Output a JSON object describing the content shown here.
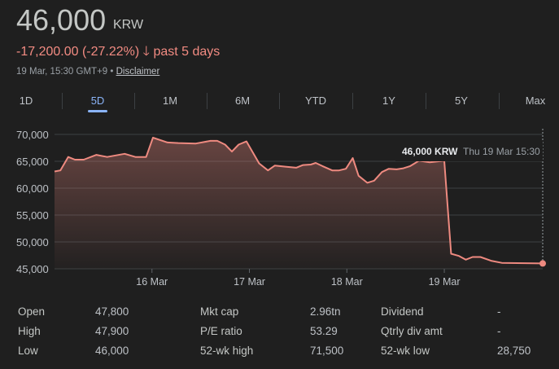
{
  "header": {
    "price": "46,000",
    "currency": "KRW",
    "change": "-17,200.00 (-27.22%)",
    "change_period": "past 5 days",
    "timestamp": "19 Mar, 15:30 GMT+9 •",
    "disclaimer": "Disclaimer"
  },
  "tabs": [
    {
      "label": "1D"
    },
    {
      "label": "5D",
      "active": true
    },
    {
      "label": "1M"
    },
    {
      "label": "6M"
    },
    {
      "label": "YTD"
    },
    {
      "label": "1Y"
    },
    {
      "label": "5Y"
    },
    {
      "label": "Max"
    }
  ],
  "tooltip": {
    "value": "46,000 KRW",
    "time": "Thu 19 Mar 15:30"
  },
  "colors": {
    "line": "#ee8a80",
    "negative": "#f28b82",
    "accent": "#8ab4f8"
  },
  "chart_data": {
    "type": "area",
    "title": "",
    "xlabel": "",
    "ylabel": "",
    "ylim": [
      45000,
      70000
    ],
    "xlim": [
      0,
      5.01
    ],
    "yticks": [
      {
        "v": 70000,
        "label": "70,000"
      },
      {
        "v": 65000,
        "label": "65,000"
      },
      {
        "v": 60000,
        "label": "60,000"
      },
      {
        "v": 55000,
        "label": "55,000"
      },
      {
        "v": 50000,
        "label": "50,000"
      },
      {
        "v": 45000,
        "label": "45,000"
      }
    ],
    "xticks": [
      {
        "v": 1,
        "label": "16 Mar"
      },
      {
        "v": 2,
        "label": "17 Mar"
      },
      {
        "v": 3,
        "label": "18 Mar"
      },
      {
        "v": 4,
        "label": "19 Mar"
      }
    ],
    "x": [
      0,
      0.06,
      0.14,
      0.21,
      0.3,
      0.43,
      0.54,
      0.72,
      0.83,
      0.94,
      1.01,
      1.16,
      1.27,
      1.45,
      1.6,
      1.67,
      1.75,
      1.82,
      1.89,
      1.97,
      2.1,
      2.19,
      2.26,
      2.37,
      2.48,
      2.55,
      2.63,
      2.68,
      2.75,
      2.85,
      2.92,
      2.99,
      3.06,
      3.12,
      3.21,
      3.28,
      3.36,
      3.43,
      3.51,
      3.58,
      3.65,
      3.74,
      3.85,
      4.0,
      4.07,
      4.15,
      4.22,
      4.29,
      4.37,
      4.48,
      4.59,
      5.01
    ],
    "y": [
      63100,
      63300,
      65800,
      65300,
      65300,
      66200,
      65800,
      66400,
      65800,
      65800,
      69400,
      68500,
      68400,
      68300,
      68800,
      68800,
      68100,
      66800,
      68100,
      68700,
      64600,
      63300,
      64200,
      64000,
      63800,
      64300,
      64400,
      64700,
      64100,
      63300,
      63300,
      63600,
      65600,
      62300,
      61000,
      61400,
      63000,
      63600,
      63500,
      63700,
      64100,
      65100,
      64800,
      65100,
      47800,
      47400,
      46700,
      47200,
      47200,
      46500,
      46100,
      46000
    ],
    "grid": true
  },
  "stats": [
    [
      {
        "label": "Open",
        "value": "47,800"
      },
      {
        "label": "Mkt cap",
        "value": "2.96tn"
      },
      {
        "label": "Dividend",
        "value": "-"
      }
    ],
    [
      {
        "label": "High",
        "value": "47,900"
      },
      {
        "label": "P/E ratio",
        "value": "53.29"
      },
      {
        "label": "Qtrly div amt",
        "value": "-"
      }
    ],
    [
      {
        "label": "Low",
        "value": "46,000"
      },
      {
        "label": "52-wk high",
        "value": "71,500"
      },
      {
        "label": "52-wk low",
        "value": "28,750"
      }
    ]
  ]
}
